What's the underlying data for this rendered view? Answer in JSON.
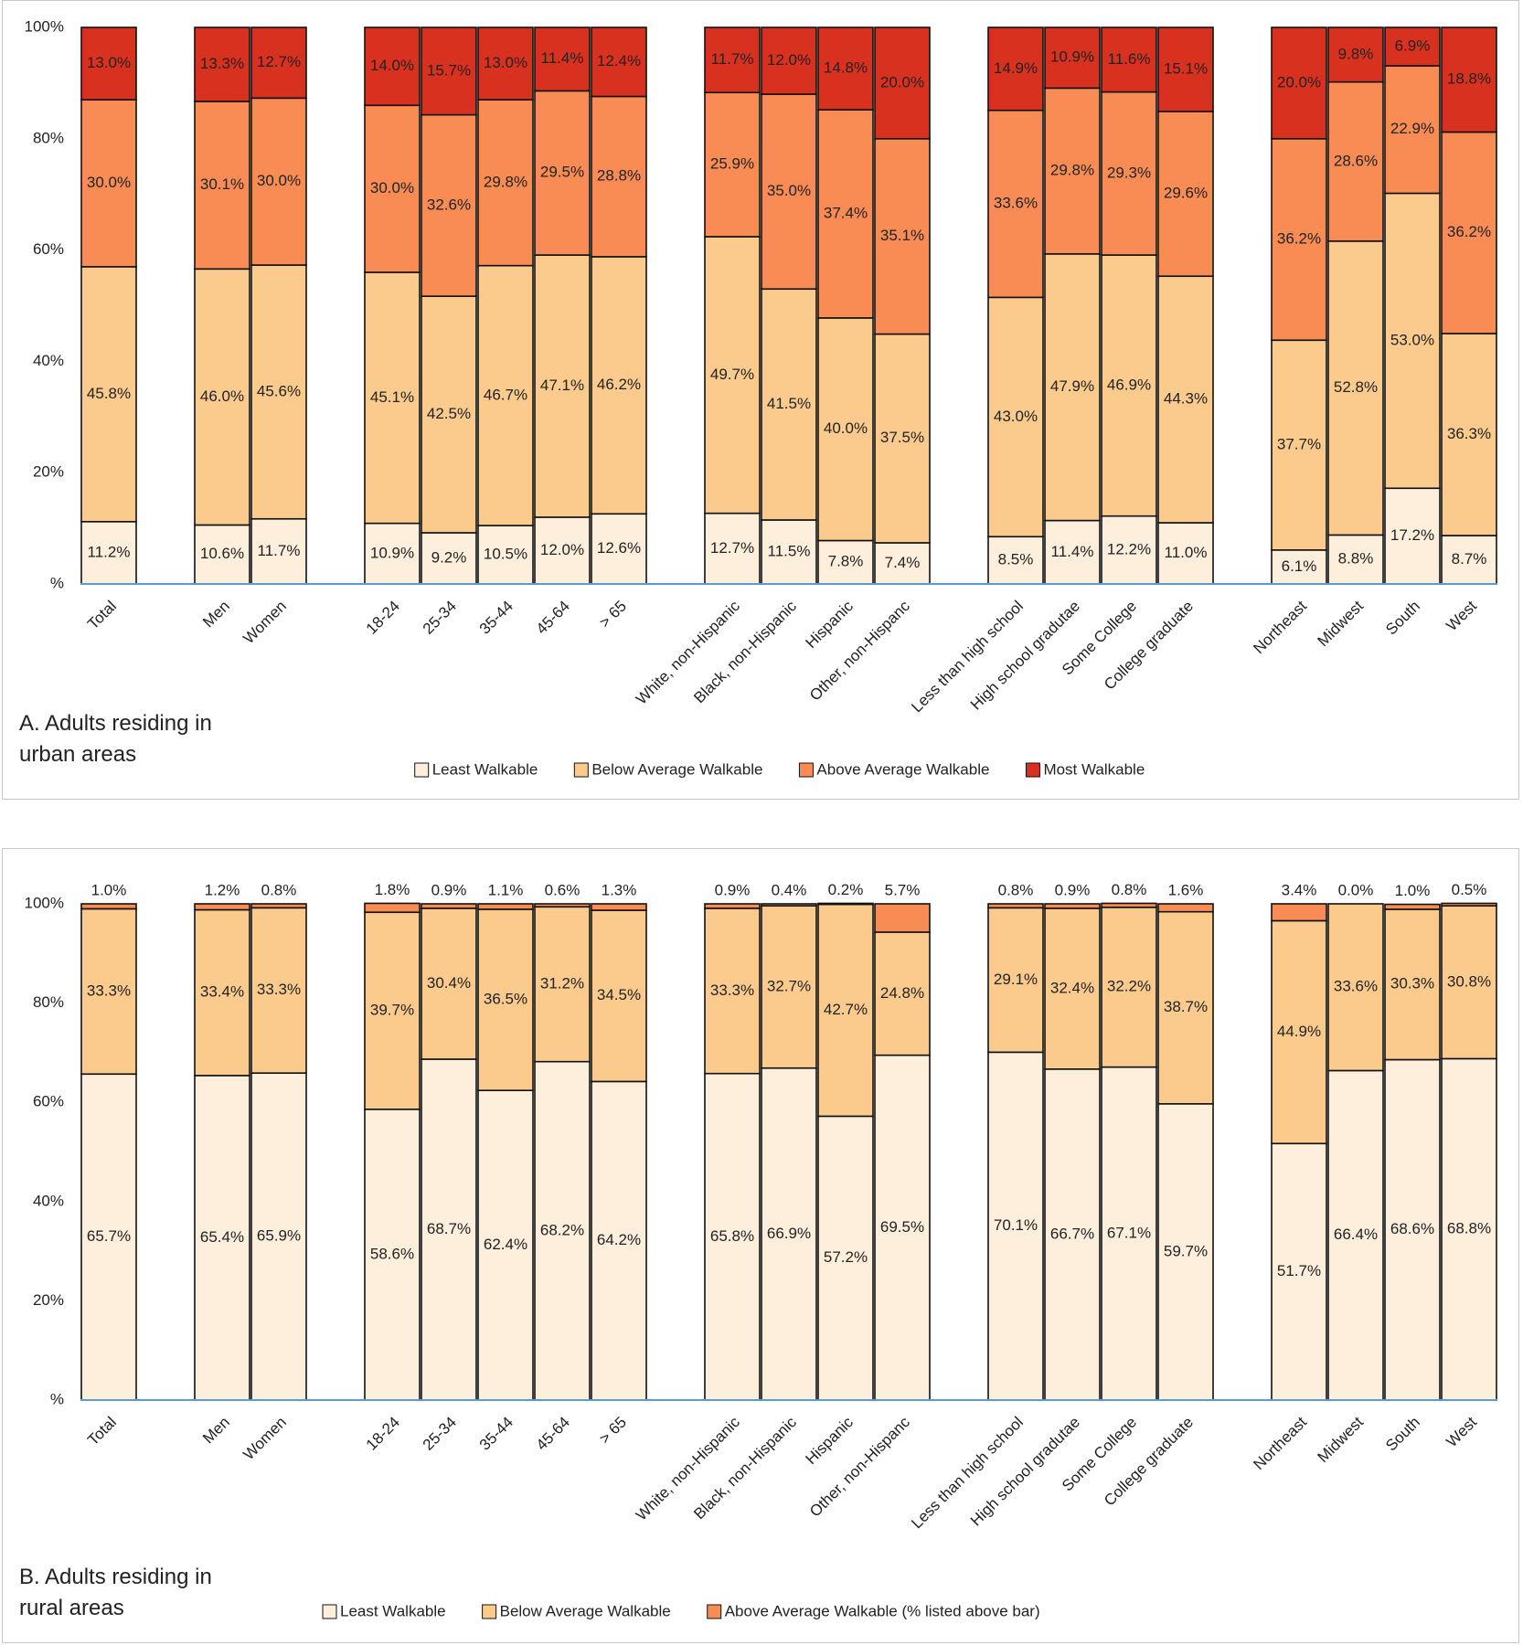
{
  "chart_data": [
    {
      "type": "stacked-bar",
      "title": "A. Adults residing in urban areas",
      "categories": [
        "Total",
        null,
        "Men",
        "Women",
        null,
        "18-24",
        "25-34",
        "35-44",
        "45-64",
        "> 65",
        null,
        "White, non-Hispanic",
        "Black, non-Hispanic",
        "Hispanic",
        "Other, non-Hispanc",
        null,
        "Less than high school",
        "High school gradutae",
        "Some College",
        "College graduate",
        null,
        "Northeast",
        "Midwest",
        "South",
        "West"
      ],
      "ylim": [
        0,
        100
      ],
      "yticks": [
        {
          "value": 0,
          "label": "%"
        },
        {
          "value": 20,
          "label": "20%"
        },
        {
          "value": 40,
          "label": "40%"
        },
        {
          "value": 60,
          "label": "60%"
        },
        {
          "value": 80,
          "label": "80%"
        },
        {
          "value": 100,
          "label": "100%"
        }
      ],
      "series": [
        {
          "name": "Least Walkable",
          "color": "#fdefdc",
          "values": [
            11.2,
            null,
            10.6,
            11.7,
            null,
            10.9,
            9.2,
            10.5,
            12.0,
            12.6,
            null,
            12.7,
            11.5,
            7.8,
            7.4,
            null,
            8.5,
            11.4,
            12.2,
            11.0,
            null,
            6.1,
            8.8,
            17.2,
            8.7
          ],
          "value_labels": [
            "11.2%",
            null,
            "10.6%",
            "11.7%",
            null,
            "10.9%",
            "9.2%",
            "10.5%",
            "12.0%",
            "12.6%",
            null,
            "12.7%",
            "11.5%",
            "7.8%",
            "7.4%",
            null,
            "8.5%",
            "11.4%",
            "12.2%",
            "11.0%",
            null,
            "6.1%",
            "8.8%",
            "17.2%",
            "8.7%"
          ]
        },
        {
          "name": "Below Average Walkable",
          "color": "#fbcb8e",
          "values": [
            45.8,
            null,
            46.0,
            45.6,
            null,
            45.1,
            42.5,
            46.7,
            47.1,
            46.2,
            null,
            49.7,
            41.5,
            40.0,
            37.5,
            null,
            43.0,
            47.9,
            46.9,
            44.3,
            null,
            37.7,
            52.8,
            53.0,
            36.3
          ],
          "value_labels": [
            "45.8%",
            null,
            "46.0%",
            "45.6%",
            null,
            "45.1%",
            "42.5%",
            "46.7%",
            "47.1%",
            "46.2%",
            null,
            "49.7%",
            "41.5%",
            "40.0%",
            "37.5%",
            null,
            "43.0%",
            "47.9%",
            "46.9%",
            "44.3%",
            null,
            "37.7%",
            "52.8%",
            "53.0%",
            "36.3%"
          ]
        },
        {
          "name": "Above Average Walkable",
          "color": "#f98c55",
          "values": [
            30.0,
            null,
            30.1,
            30.0,
            null,
            30.0,
            32.6,
            29.8,
            29.5,
            28.8,
            null,
            25.9,
            35.0,
            37.4,
            35.1,
            null,
            33.6,
            29.8,
            29.3,
            29.6,
            null,
            36.2,
            28.6,
            22.9,
            36.2
          ],
          "value_labels": [
            "30.0%",
            null,
            "30.1%",
            "30.0%",
            null,
            "30.0%",
            "32.6%",
            "29.8%",
            "29.5%",
            "28.8%",
            null,
            "25.9%",
            "35.0%",
            "37.4%",
            "35.1%",
            null,
            "33.6%",
            "29.8%",
            "29.3%",
            "29.6%",
            null,
            "36.2%",
            "28.6%",
            "22.9%",
            "36.2%"
          ]
        },
        {
          "name": "Most Walkable",
          "color": "#d9311f",
          "values": [
            13.0,
            null,
            13.3,
            12.7,
            null,
            14.0,
            15.7,
            13.0,
            11.4,
            12.4,
            null,
            11.7,
            12.0,
            14.8,
            20.0,
            null,
            14.9,
            10.9,
            11.6,
            15.1,
            null,
            20.0,
            9.8,
            6.9,
            18.8
          ],
          "value_labels": [
            "13.0%",
            null,
            "13.3%",
            "12.7%",
            null,
            "14.0%",
            "15.7%",
            "13.0%",
            "11.4%",
            "12.4%",
            null,
            "11.7%",
            "12.0%",
            "14.8%",
            "20.0%",
            null,
            "14.9%",
            "10.9%",
            "11.6%",
            "15.1%",
            null,
            "20.0%",
            "9.8%",
            "6.9%",
            "18.8%"
          ]
        }
      ]
    },
    {
      "type": "stacked-bar",
      "title": "B. Adults residing in rural areas",
      "categories": [
        "Total",
        null,
        "Men",
        "Women",
        null,
        "18-24",
        "25-34",
        "35-44",
        "45-64",
        "> 65",
        null,
        "White, non-Hispanic",
        "Black, non-Hispanic",
        "Hispanic",
        "Other, non-Hispanc",
        null,
        "Less than high school",
        "High school gradutae",
        "Some College",
        "College graduate",
        null,
        "Northeast",
        "Midwest",
        "South",
        "West"
      ],
      "ylim": [
        0,
        100
      ],
      "yticks": [
        {
          "value": 0,
          "label": "%"
        },
        {
          "value": 20,
          "label": "20%"
        },
        {
          "value": 40,
          "label": "40%"
        },
        {
          "value": 60,
          "label": "60%"
        },
        {
          "value": 80,
          "label": "80%"
        },
        {
          "value": 100,
          "label": "100%"
        }
      ],
      "series": [
        {
          "name": "Least Walkable",
          "color": "#fdefdc",
          "values": [
            65.7,
            null,
            65.4,
            65.9,
            null,
            58.6,
            68.7,
            62.4,
            68.2,
            64.2,
            null,
            65.8,
            66.9,
            57.2,
            69.5,
            null,
            70.1,
            66.7,
            67.1,
            59.7,
            null,
            51.7,
            66.4,
            68.6,
            68.8
          ],
          "value_labels": [
            "65.7%",
            null,
            "65.4%",
            "65.9%",
            null,
            "58.6%",
            "68.7%",
            "62.4%",
            "68.2%",
            "64.2%",
            null,
            "65.8%",
            "66.9%",
            "57.2%",
            "69.5%",
            null,
            "70.1%",
            "66.7%",
            "67.1%",
            "59.7%",
            null,
            "51.7%",
            "66.4%",
            "68.6%",
            "68.8%"
          ]
        },
        {
          "name": "Below Average Walkable",
          "color": "#fbcb8e",
          "values": [
            33.3,
            null,
            33.4,
            33.3,
            null,
            39.7,
            30.4,
            36.5,
            31.2,
            34.5,
            null,
            33.3,
            32.7,
            42.7,
            24.8,
            null,
            29.1,
            32.4,
            32.2,
            38.7,
            null,
            44.9,
            33.6,
            30.3,
            30.8
          ],
          "value_labels": [
            "33.3%",
            null,
            "33.4%",
            "33.3%",
            null,
            "39.7%",
            "30.4%",
            "36.5%",
            "31.2%",
            "34.5%",
            null,
            "33.3%",
            "32.7%",
            "42.7%",
            "24.8%",
            null,
            "29.1%",
            "32.4%",
            "32.2%",
            "38.7%",
            null,
            "44.9%",
            "33.6%",
            "30.3%",
            "30.8%"
          ]
        },
        {
          "name": "Above Average Walkable (% listed above bar)",
          "color": "#f98c55",
          "label_position": "above",
          "values": [
            1.0,
            null,
            1.2,
            0.8,
            null,
            1.8,
            0.9,
            1.1,
            0.6,
            1.3,
            null,
            0.9,
            0.4,
            0.2,
            5.7,
            null,
            0.8,
            0.9,
            0.8,
            1.6,
            null,
            3.4,
            0.0,
            1.0,
            0.5
          ],
          "value_labels": [
            "1.0%",
            null,
            "1.2%",
            "0.8%",
            null,
            "1.8%",
            "0.9%",
            "1.1%",
            "0.6%",
            "1.3%",
            null,
            "0.9%",
            "0.4%",
            "0.2%",
            "5.7%",
            null,
            "0.8%",
            "0.9%",
            "0.8%",
            "1.6%",
            null,
            "3.4%",
            "0.0%",
            "1.0%",
            "0.5%"
          ]
        }
      ]
    }
  ]
}
